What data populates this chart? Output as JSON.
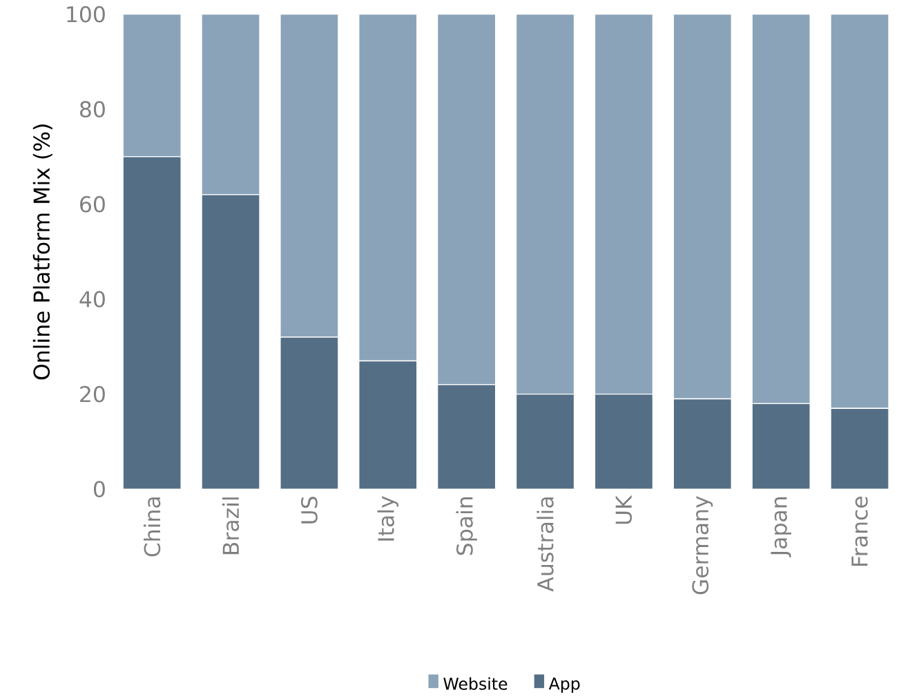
{
  "chart_data": {
    "type": "bar",
    "ylabel": "Online Platform Mix (%)",
    "stacked": true,
    "legend": "bottom",
    "grid": false,
    "categories": [
      "China",
      "Brazil",
      "US",
      "Italy",
      "Spain",
      "Australia",
      "UK",
      "Germany",
      "Japan",
      "France"
    ],
    "ylim": [
      0,
      100
    ],
    "yticks": [
      0,
      20,
      40,
      60,
      80,
      100
    ],
    "series": [
      {
        "name": "App",
        "color": "#546e85",
        "values": [
          70,
          62,
          32,
          27,
          22,
          20,
          20,
          19,
          18,
          17
        ]
      },
      {
        "name": "Website",
        "color": "#8aa3b8",
        "values": [
          30,
          38,
          68,
          73,
          78,
          80,
          80,
          81,
          82,
          83
        ]
      }
    ]
  }
}
